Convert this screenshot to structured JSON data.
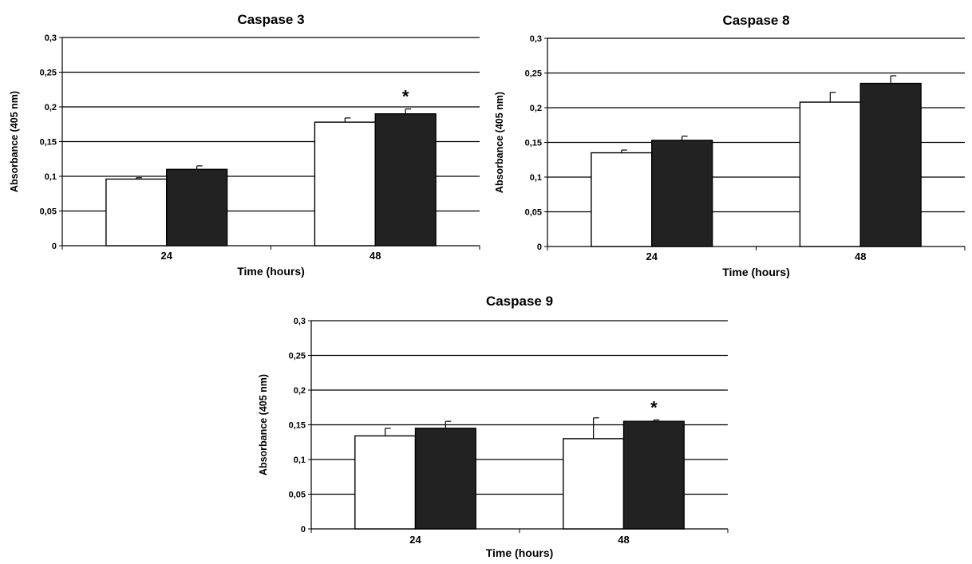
{
  "chart_data": [
    {
      "type": "bar",
      "title": "Caspase 3",
      "xlabel": "Time (hours)",
      "ylabel": "Absorbance (405 nm)",
      "categories": [
        "24",
        "48"
      ],
      "ylim": [
        0,
        0.3
      ],
      "yticks": [
        "0",
        "0,05",
        "0,1",
        "0,15",
        "0,2",
        "0,25",
        "0,3"
      ],
      "grid": true,
      "series": [
        {
          "color": "#ffffff",
          "values": [
            0.096,
            0.178
          ],
          "errors": [
            0.002,
            0.006
          ]
        },
        {
          "color": "#222222",
          "values": [
            0.11,
            0.19
          ],
          "errors": [
            0.005,
            0.007
          ]
        }
      ],
      "annotations": [
        {
          "text": "*",
          "category": 1,
          "series": 1
        }
      ]
    },
    {
      "type": "bar",
      "title": "Caspase 8",
      "xlabel": "Time (hours)",
      "ylabel": "Absorbance (405 nm)",
      "categories": [
        "24",
        "48"
      ],
      "ylim": [
        0,
        0.3
      ],
      "yticks": [
        "0",
        "0,05",
        "0,1",
        "0,15",
        "0,2",
        "0,25",
        "0,3"
      ],
      "grid": true,
      "series": [
        {
          "color": "#ffffff",
          "values": [
            0.135,
            0.208
          ],
          "errors": [
            0.004,
            0.014
          ]
        },
        {
          "color": "#222222",
          "values": [
            0.153,
            0.235
          ],
          "errors": [
            0.006,
            0.011
          ]
        }
      ],
      "annotations": []
    },
    {
      "type": "bar",
      "title": "Caspase 9",
      "xlabel": "Time (hours)",
      "ylabel": "Absorbance (405 nm)",
      "categories": [
        "24",
        "48"
      ],
      "ylim": [
        0,
        0.3
      ],
      "yticks": [
        "0",
        "0,05",
        "0,1",
        "0,15",
        "0,2",
        "0,25",
        "0,3"
      ],
      "grid": true,
      "series": [
        {
          "color": "#ffffff",
          "values": [
            0.134,
            0.13
          ],
          "errors": [
            0.011,
            0.03
          ]
        },
        {
          "color": "#222222",
          "values": [
            0.145,
            0.155
          ],
          "errors": [
            0.01,
            0.002
          ]
        }
      ],
      "annotations": [
        {
          "text": "*",
          "category": 1,
          "series": 1
        }
      ]
    }
  ]
}
